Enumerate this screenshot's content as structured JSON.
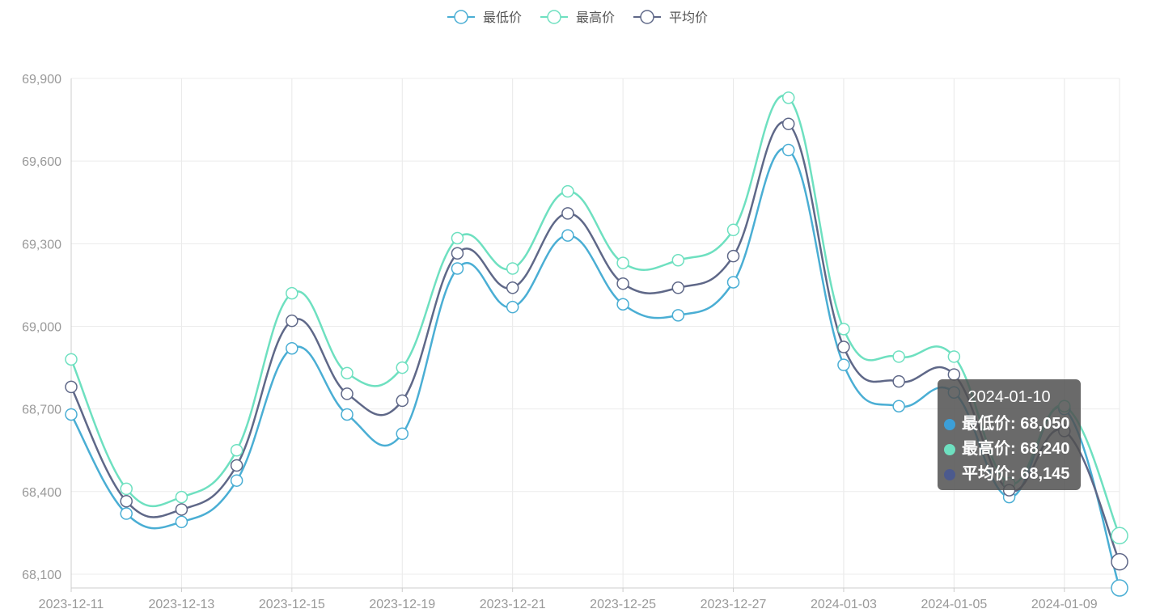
{
  "chart_data": {
    "type": "line",
    "x": [
      "2023-12-11",
      "2023-12-12",
      "2023-12-13",
      "2023-12-14",
      "2023-12-15",
      "2023-12-18",
      "2023-12-19",
      "2023-12-20",
      "2023-12-21",
      "2023-12-22",
      "2023-12-25",
      "2023-12-26",
      "2023-12-27",
      "2023-12-28",
      "2024-01-03",
      "2024-01-04",
      "2024-01-05",
      "2024-01-08",
      "2024-01-09",
      "2024-01-10"
    ],
    "x_tick_labels": [
      "2023-12-11",
      "2023-12-13",
      "2023-12-15",
      "2023-12-19",
      "2023-12-21",
      "2023-12-25",
      "2023-12-27",
      "2024-01-03",
      "2024-01-05",
      "2024-01-09"
    ],
    "y_ticks": [
      68100,
      68400,
      68700,
      69000,
      69300,
      69600,
      69900
    ],
    "y_tick_labels": [
      "68,100",
      "68,400",
      "68,700",
      "69,000",
      "69,300",
      "69,600",
      "69,900"
    ],
    "ylim": [
      68050,
      69900
    ],
    "grid": true,
    "legend_position": "top-center",
    "series": [
      {
        "name": "最低价",
        "color": "#4aaed4",
        "values": [
          68680,
          68320,
          68290,
          68440,
          68920,
          68680,
          68610,
          69210,
          69070,
          69330,
          69080,
          69040,
          69160,
          69640,
          68860,
          68710,
          68760,
          68380,
          68700,
          68050
        ]
      },
      {
        "name": "最高价",
        "color": "#6ee0c0",
        "values": [
          68880,
          68410,
          68380,
          68550,
          69120,
          68830,
          68850,
          69320,
          69210,
          69490,
          69230,
          69240,
          69350,
          69830,
          68990,
          68890,
          68890,
          68430,
          68710,
          68240
        ]
      },
      {
        "name": "平均价",
        "color": "#5f6888",
        "values": [
          68780,
          68365,
          68335,
          68495,
          69020,
          68755,
          68730,
          69265,
          69140,
          69410,
          69155,
          69140,
          69255,
          69735,
          68925,
          68800,
          68825,
          68405,
          68620,
          68145
        ]
      }
    ],
    "tooltip": {
      "title": "2024-01-10",
      "rows": [
        {
          "label": "最低价: 68,050",
          "color": "#3c9fd8"
        },
        {
          "label": "最高价: 68,240",
          "color": "#6ee0c0"
        },
        {
          "label": "平均价: 68,145",
          "color": "#4c5a8e"
        }
      ]
    }
  }
}
